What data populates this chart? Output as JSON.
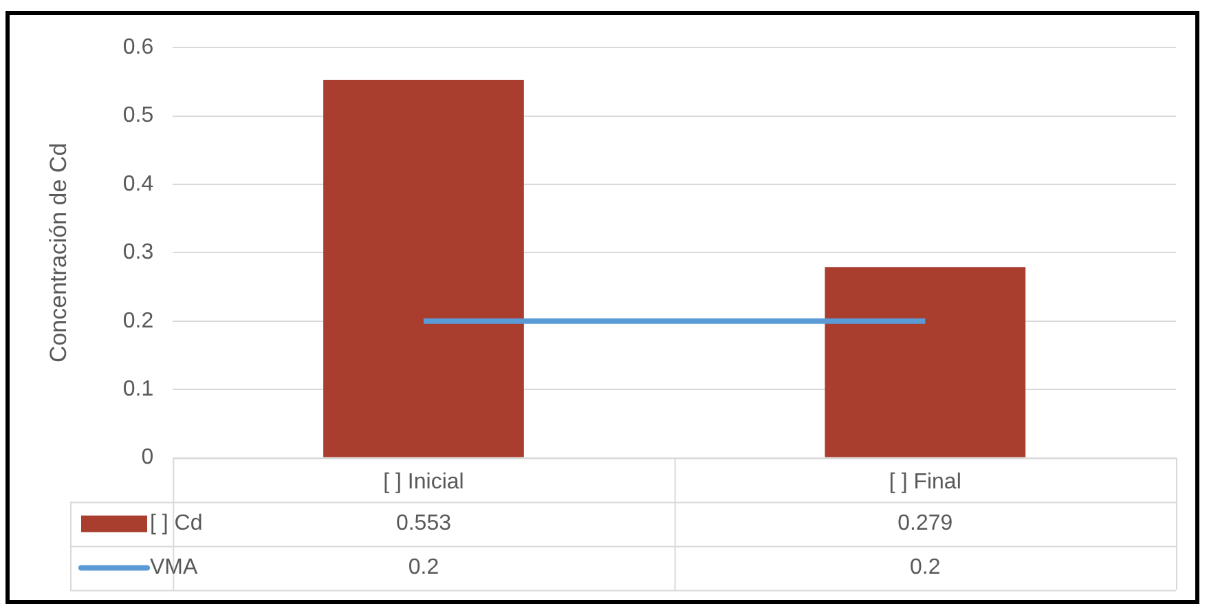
{
  "chart_data": {
    "type": "bar",
    "ylabel": "Concentración de Cd",
    "categories": [
      "[ ] Inicial",
      "[ ] Final"
    ],
    "series": [
      {
        "name": "[ ] Cd",
        "color": "#a93e2e",
        "values": [
          0.553,
          0.279
        ]
      },
      {
        "name": "VMA",
        "type": "line",
        "color": "#5b9bd5",
        "values": [
          0.2,
          0.2
        ]
      }
    ],
    "ylim": [
      0,
      0.6
    ],
    "yticks": [
      0,
      0.1,
      0.2,
      0.3,
      0.4,
      0.5,
      0.6
    ],
    "grid": "y",
    "legend": "bottom",
    "marker": "none",
    "data_labels": true
  }
}
